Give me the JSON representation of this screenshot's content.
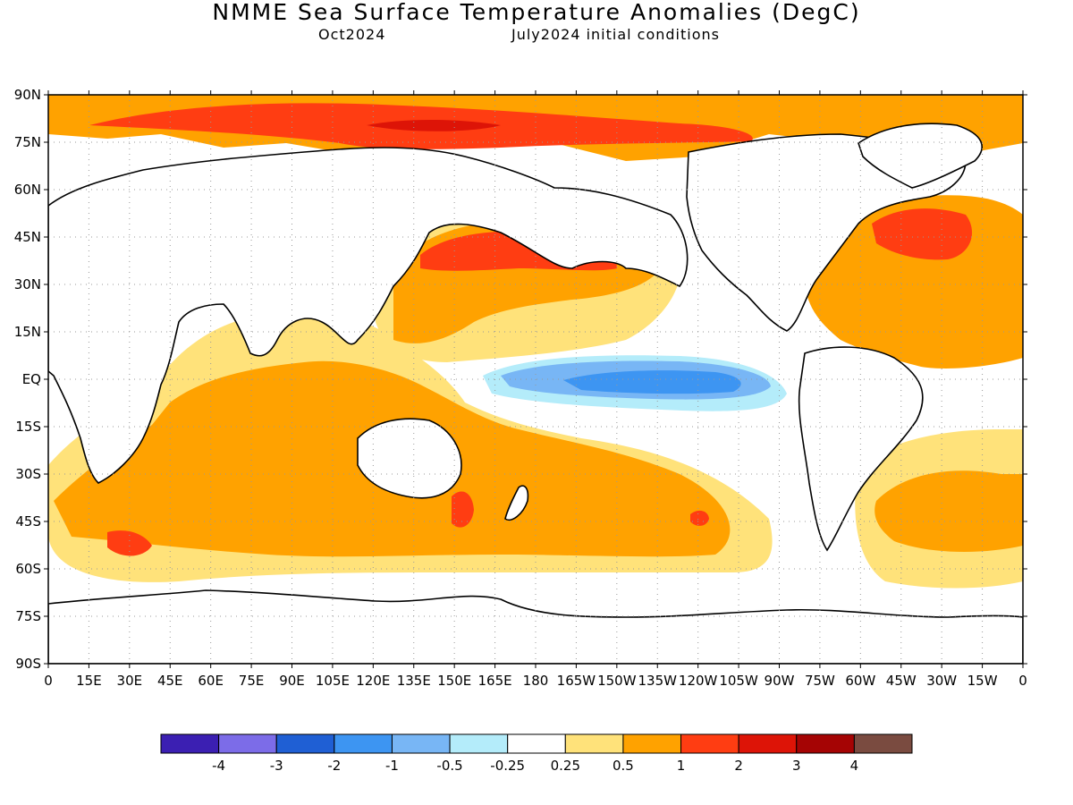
{
  "header": {
    "title": "NMME Sea Surface Temperature Anomalies (DegC)",
    "valid_month": "Oct2024",
    "init": "July2024 initial conditions"
  },
  "axes": {
    "lat_labels": [
      "90N",
      "75N",
      "60N",
      "45N",
      "30N",
      "15N",
      "EQ",
      "15S",
      "30S",
      "45S",
      "60S",
      "75S",
      "90S"
    ],
    "lon_labels": [
      "0",
      "15E",
      "30E",
      "45E",
      "60E",
      "75E",
      "90E",
      "105E",
      "120E",
      "135E",
      "150E",
      "165E",
      "180",
      "165W",
      "150W",
      "135W",
      "120W",
      "105W",
      "90W",
      "75W",
      "60W",
      "45W",
      "30W",
      "15W",
      "0"
    ]
  },
  "colorbar": {
    "colors": [
      "#3b1fb2",
      "#7c6ce8",
      "#1f5fd4",
      "#3d95f2",
      "#78b6f5",
      "#b4ecfa",
      "#ffffff",
      "#ffe27a",
      "#ffa200",
      "#ff3d12",
      "#dd1407",
      "#a50404",
      "#7a4b40"
    ],
    "labels": [
      "-4",
      "-3",
      "-2",
      "-1",
      "-0.5",
      "-0.25",
      "0.25",
      "0.5",
      "1",
      "2",
      "3",
      "4"
    ]
  },
  "colors": {
    "ocean_base": "#ffffff",
    "land": "#ffffff",
    "coast": "#000000",
    "grid": "#999999"
  }
}
